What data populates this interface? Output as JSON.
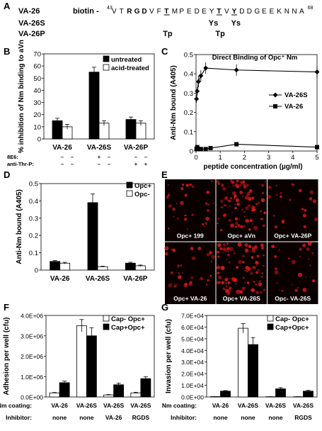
{
  "panel_a": {
    "letter": "A",
    "peptides": [
      {
        "name": "VA-26",
        "prefix": "biotin -",
        "start": "43",
        "end": "68",
        "residues": [
          "V",
          "T",
          "R",
          "G",
          "D",
          "V",
          "F",
          "T",
          "M",
          "P",
          "E",
          "D",
          "E",
          "Y",
          "T",
          "V",
          "Y",
          "D",
          "D",
          "G",
          "E",
          "E",
          "K",
          "N",
          "N",
          "A"
        ]
      },
      {
        "name": "VA-26S",
        "mods": [
          "",
          "Ys",
          "Ys"
        ]
      },
      {
        "name": "VA-26P",
        "mods": [
          "Tp",
          "Tp"
        ]
      }
    ]
  },
  "panel_e": {
    "letter": "E",
    "tiles": [
      "Opc+ 199",
      "Opc+ aVn",
      "Opc+ VA-26P",
      "Opc+ VA-26",
      "Opc+ VA-26S",
      "Opc- VA-26S"
    ]
  },
  "panel_b_footer": {
    "rows": [
      {
        "label": "8E6:",
        "signs": [
          "–",
          "–",
          "+",
          "–",
          "–",
          "–"
        ]
      },
      {
        "label": "anti-Thr-P:",
        "signs": [
          "–",
          "–",
          "–",
          "–",
          "+",
          "+"
        ]
      }
    ]
  },
  "panel_f_footer": {
    "rows": [
      {
        "label": "Nm coating:",
        "values": [
          "VA-26",
          "VA-26S",
          "VA-26S",
          "VA-26S"
        ]
      },
      {
        "label": "Inhibitor:",
        "values": [
          "none",
          "none",
          "VA-26",
          "RGDS"
        ]
      }
    ]
  },
  "panel_g_footer": {
    "rows": [
      {
        "label": "Nm coating:",
        "values": [
          "VA-26",
          "VA-26S",
          "VA-26S",
          "VA-26S"
        ]
      },
      {
        "label": "Inhibitor:",
        "values": [
          "none",
          "none",
          "none",
          "RGDS"
        ]
      }
    ]
  },
  "colors": {
    "black": "#000000",
    "white": "#ffffff",
    "micro_bg": "#0a0000",
    "micro_spot": "#d81818"
  },
  "chart_data": [
    {
      "id": "B",
      "letter": "B",
      "type": "bar",
      "ylabel": "% inhibition of Nm binding to aVn",
      "ylim": [
        0,
        70
      ],
      "yticks": [
        0,
        10,
        20,
        30,
        40,
        50,
        60,
        70
      ],
      "categories": [
        "VA-26",
        "VA-26S",
        "VA-26P"
      ],
      "series": [
        {
          "name": "untreated",
          "color": "#000000",
          "values": [
            15,
            55,
            16
          ],
          "errors": [
            2,
            4,
            2
          ]
        },
        {
          "name": "acid-treated",
          "color": "#ffffff",
          "values": [
            10,
            13,
            13
          ],
          "errors": [
            2,
            2,
            2
          ]
        }
      ],
      "legend_position": "top-right"
    },
    {
      "id": "C",
      "letter": "C",
      "type": "line",
      "title": "Direct  Binding of Opc⁺ Nm",
      "xlabel": "peptide concentration (µg/ml)",
      "ylabel": "Anti-Nm bound (A405)",
      "xlim": [
        0,
        5
      ],
      "xticks": [
        0,
        1,
        2,
        3,
        4,
        5
      ],
      "ylim": [
        0,
        0.5
      ],
      "yticks": [
        "0",
        "0.1",
        "0.2",
        "0.3",
        "0.4",
        "0.5"
      ],
      "series": [
        {
          "name": "VA-26S",
          "marker": "diamond",
          "x": [
            0.02,
            0.05,
            0.1,
            0.2,
            0.4,
            1.67,
            5
          ],
          "y": [
            0.27,
            0.31,
            0.36,
            0.39,
            0.43,
            0.42,
            0.41
          ],
          "errors": [
            0.02,
            0.02,
            0.03,
            0.03,
            0.03,
            0.03,
            0.03
          ]
        },
        {
          "name": "VA-26",
          "marker": "square",
          "x": [
            0.02,
            0.05,
            0.1,
            0.2,
            0.4,
            0.6,
            1.67,
            5
          ],
          "y": [
            0.01,
            0.02,
            0.01,
            0.01,
            0.01,
            0.015,
            0.035,
            0.02
          ],
          "errors": [
            0.003,
            0.003,
            0.003,
            0.003,
            0.003,
            0.003,
            0.004,
            0.003
          ]
        }
      ],
      "legend_position": "right"
    },
    {
      "id": "D",
      "letter": "D",
      "type": "bar",
      "ylabel": "Anti-Nm bound (A405)",
      "ylim": [
        0,
        0.5
      ],
      "yticks": [
        "0",
        "0.1",
        "0.2",
        "0.3",
        "0.4",
        "0.5"
      ],
      "categories": [
        "VA-26",
        "VA-26S",
        "VA-26P"
      ],
      "series": [
        {
          "name": "Opc+",
          "color": "#000000",
          "values": [
            0.05,
            0.39,
            0.04
          ],
          "errors": [
            0.005,
            0.05,
            0.005
          ]
        },
        {
          "name": "Opc-",
          "color": "#ffffff",
          "values": [
            0.04,
            0.02,
            0.025
          ],
          "errors": [
            0.005,
            0.003,
            0.004
          ]
        }
      ],
      "legend_position": "top-right"
    },
    {
      "id": "F",
      "letter": "F",
      "type": "bar",
      "ylabel": "Adhesion per well (cfu)",
      "ylim": [
        0,
        4000000
      ],
      "yticks": [
        "0.0E+00",
        "1.0E+06",
        "2.0E+06",
        "3.0E+06",
        "4.0E+06"
      ],
      "categories": [
        "VA-26 / none",
        "VA-26S / none",
        "VA-26S / VA-26",
        "VA-26S / RGDS"
      ],
      "series": [
        {
          "name": "Cap- Opc+",
          "color": "#ffffff",
          "values": [
            200000,
            3500000,
            100000,
            200000
          ],
          "errors": [
            20000,
            300000,
            20000,
            30000
          ]
        },
        {
          "name": "Cap+Opc+",
          "color": "#000000",
          "values": [
            700000,
            3000000,
            600000,
            900000
          ],
          "errors": [
            80000,
            400000,
            80000,
            100000
          ]
        }
      ],
      "legend_position": "top-right"
    },
    {
      "id": "G",
      "letter": "G",
      "type": "bar",
      "ylabel": "Invasion per well (cfu)",
      "ylim": [
        0,
        70000
      ],
      "yticks": [
        "0.0E+00",
        "1.0E+04",
        "2.0E+04",
        "3.0E+04",
        "4.0E+04",
        "5.0E+04",
        "6.0E+04",
        "7.0E+04"
      ],
      "categories": [
        "VA-26 / none",
        "VA-26S / none",
        "VA-26S / none",
        "VA-26S / RGDS"
      ],
      "series": [
        {
          "name": "Cap- Opc+",
          "color": "#ffffff",
          "values": [
            300,
            59000,
            200,
            200
          ],
          "errors": [
            50,
            4000,
            50,
            50
          ]
        },
        {
          "name": "Cap+Opc+",
          "color": "#000000",
          "values": [
            5000,
            45000,
            7000,
            5000
          ],
          "errors": [
            500,
            6000,
            1000,
            700
          ]
        }
      ],
      "legend_position": "top-right"
    }
  ]
}
